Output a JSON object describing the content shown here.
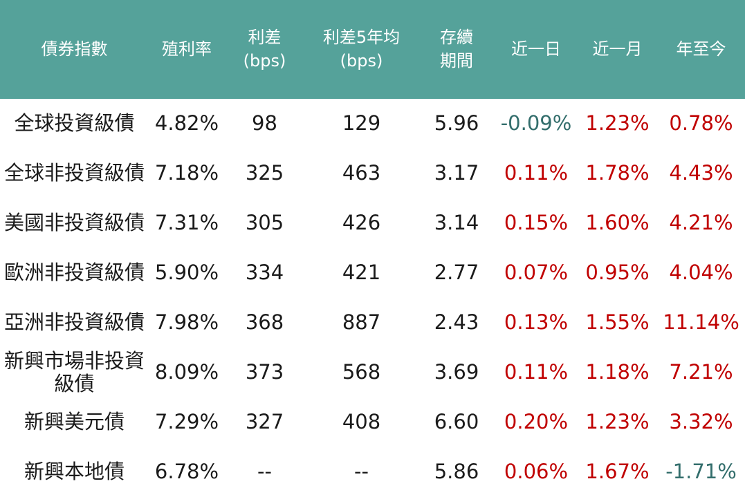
{
  "colors": {
    "header_bg": "#55A29A",
    "header_text": "#FFFFFF",
    "body_text": "#1B1B1B",
    "positive": "#C00000",
    "negative": "#336E6C"
  },
  "table": {
    "columns": [
      {
        "line1": "債券指數",
        "line2": ""
      },
      {
        "line1": "殖利率",
        "line2": ""
      },
      {
        "line1": "利差",
        "line2": "(bps)"
      },
      {
        "line1": "利差5年均",
        "line2": "(bps)"
      },
      {
        "line1": "存續",
        "line2": "期間"
      },
      {
        "line1": "近一日",
        "line2": ""
      },
      {
        "line1": "近一月",
        "line2": ""
      },
      {
        "line1": "年至今",
        "line2": ""
      }
    ],
    "rows": [
      {
        "name": "全球投資級債",
        "cells": [
          "4.82%",
          "98",
          "129",
          "5.96",
          "-0.09%",
          "1.23%",
          "0.78%"
        ]
      },
      {
        "name": "全球非投資級債",
        "cells": [
          "7.18%",
          "325",
          "463",
          "3.17",
          "0.11%",
          "1.78%",
          "4.43%"
        ]
      },
      {
        "name": "美國非投資級債",
        "cells": [
          "7.31%",
          "305",
          "426",
          "3.14",
          "0.15%",
          "1.60%",
          "4.21%"
        ]
      },
      {
        "name": "歐洲非投資級債",
        "cells": [
          "5.90%",
          "334",
          "421",
          "2.77",
          "0.07%",
          "0.95%",
          "4.04%"
        ]
      },
      {
        "name": "亞洲非投資級債",
        "cells": [
          "7.98%",
          "368",
          "887",
          "2.43",
          "0.13%",
          "1.55%",
          "11.14%"
        ]
      },
      {
        "name": "新興市場非投資級債",
        "cells": [
          "8.09%",
          "373",
          "568",
          "3.69",
          "0.11%",
          "1.18%",
          "7.21%"
        ]
      },
      {
        "name": "新興美元債",
        "cells": [
          "7.29%",
          "327",
          "408",
          "6.60",
          "0.20%",
          "1.23%",
          "3.32%"
        ]
      },
      {
        "name": "新興本地債",
        "cells": [
          "6.78%",
          "--",
          "--",
          "5.86",
          "0.06%",
          "1.67%",
          "-1.71%"
        ]
      }
    ]
  },
  "chart_data": {
    "type": "table",
    "title": "",
    "columns": [
      "債券指數",
      "殖利率",
      "利差(bps)",
      "利差5年均(bps)",
      "存續期間",
      "近一日",
      "近一月",
      "年至今"
    ],
    "rows": [
      [
        "全球投資級債",
        "4.82%",
        98,
        129,
        5.96,
        "-0.09%",
        "1.23%",
        "0.78%"
      ],
      [
        "全球非投資級債",
        "7.18%",
        325,
        463,
        3.17,
        "0.11%",
        "1.78%",
        "4.43%"
      ],
      [
        "美國非投資級債",
        "7.31%",
        305,
        426,
        3.14,
        "0.15%",
        "1.60%",
        "4.21%"
      ],
      [
        "歐洲非投資級債",
        "5.90%",
        334,
        421,
        2.77,
        "0.07%",
        "0.95%",
        "4.04%"
      ],
      [
        "亞洲非投資級債",
        "7.98%",
        368,
        887,
        2.43,
        "0.13%",
        "1.55%",
        "11.14%"
      ],
      [
        "新興市場非投資級債",
        "8.09%",
        373,
        568,
        3.69,
        "0.11%",
        "1.18%",
        "7.21%"
      ],
      [
        "新興美元債",
        "7.29%",
        327,
        408,
        6.6,
        "0.20%",
        "1.23%",
        "3.32%"
      ],
      [
        "新興本地債",
        "6.78%",
        "--",
        "--",
        5.86,
        "0.06%",
        "1.67%",
        "-1.71%"
      ]
    ],
    "layout_hints": {
      "header_background": "#55A29A",
      "change_columns": [
        "近一日",
        "近一月",
        "年至今"
      ],
      "positive_color": "#C00000",
      "negative_color": "#336E6C",
      "grid": "off"
    }
  }
}
